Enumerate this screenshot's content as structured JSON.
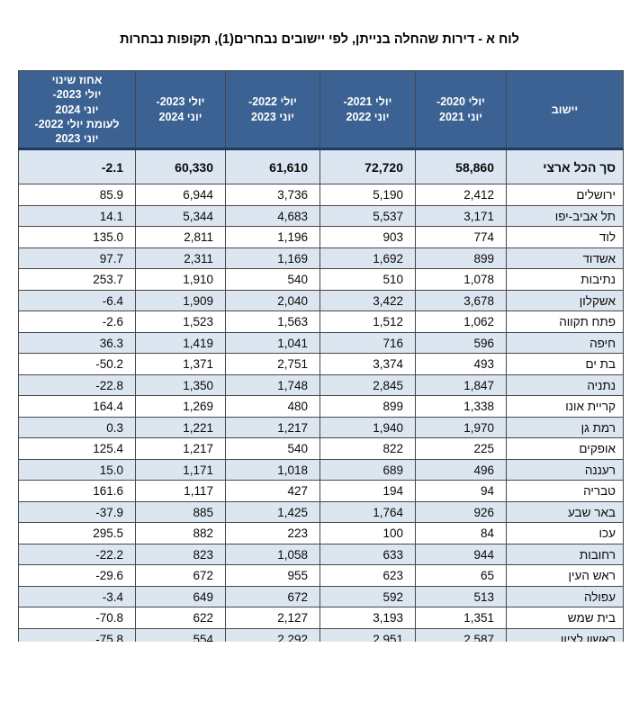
{
  "page": {
    "title": "לוח א - דירות שהחלה בנייתן, לפי יישובים נבחרים(1), תקופות נבחרות"
  },
  "table": {
    "colors": {
      "header_bg": "#3b6292",
      "header_bottom_border": "#1f3864",
      "alt_row_bg": "#dce6f1",
      "grid_line": "#474747",
      "header_text": "#ffffff",
      "body_text": "#0a0a0a"
    },
    "columns": [
      {
        "key": "locality",
        "label_lines": [
          "יישוב"
        ]
      },
      {
        "key": "jul2020-jun2021",
        "label_lines": [
          "יולי 2020-",
          "יוני 2021"
        ]
      },
      {
        "key": "jul2021-jun2022",
        "label_lines": [
          "יולי 2021-",
          "יוני 2022"
        ]
      },
      {
        "key": "jul2022-jun2023",
        "label_lines": [
          "יולי 2022-",
          "יוני 2023"
        ]
      },
      {
        "key": "jul2023-jun2024",
        "label_lines": [
          "יולי 2023-",
          "יוני 2024"
        ]
      },
      {
        "key": "pct-change",
        "label_lines": [
          "אחוז שינוי",
          "יולי 2023-",
          "יוני 2024",
          "לעומת יולי 2022-",
          "יוני 2023"
        ]
      }
    ],
    "total_row": {
      "locality": "סך הכל ארצי",
      "values": [
        "58,860",
        "72,720",
        "61,610",
        "60,330"
      ],
      "pct": "-2.1"
    },
    "rows": [
      {
        "locality": "ירושלים",
        "values": [
          "2,412",
          "5,190",
          "3,736",
          "6,944"
        ],
        "pct": "85.9"
      },
      {
        "locality": "תל אביב-יפו",
        "values": [
          "3,171",
          "5,537",
          "4,683",
          "5,344"
        ],
        "pct": "14.1"
      },
      {
        "locality": "לוד",
        "values": [
          "774",
          "903",
          "1,196",
          "2,811"
        ],
        "pct": "135.0"
      },
      {
        "locality": "אשדוד",
        "values": [
          "899",
          "1,692",
          "1,169",
          "2,311"
        ],
        "pct": "97.7"
      },
      {
        "locality": "נתיבות",
        "values": [
          "1,078",
          "510",
          "540",
          "1,910"
        ],
        "pct": "253.7"
      },
      {
        "locality": "אשקלון",
        "values": [
          "3,678",
          "3,422",
          "2,040",
          "1,909"
        ],
        "pct": "-6.4"
      },
      {
        "locality": "פתח תקווה",
        "values": [
          "1,062",
          "1,512",
          "1,563",
          "1,523"
        ],
        "pct": "-2.6"
      },
      {
        "locality": "חיפה",
        "values": [
          "596",
          "716",
          "1,041",
          "1,419"
        ],
        "pct": "36.3"
      },
      {
        "locality": "בת ים",
        "values": [
          "493",
          "3,374",
          "2,751",
          "1,371"
        ],
        "pct": "-50.2"
      },
      {
        "locality": "נתניה",
        "values": [
          "1,847",
          "2,845",
          "1,748",
          "1,350"
        ],
        "pct": "-22.8"
      },
      {
        "locality": "קריית אונו",
        "values": [
          "1,338",
          "899",
          "480",
          "1,269"
        ],
        "pct": "164.4"
      },
      {
        "locality": "רמת גן",
        "values": [
          "1,970",
          "1,940",
          "1,217",
          "1,221"
        ],
        "pct": "0.3"
      },
      {
        "locality": "אופקים",
        "values": [
          "225",
          "822",
          "540",
          "1,217"
        ],
        "pct": "125.4"
      },
      {
        "locality": "רעננה",
        "values": [
          "496",
          "689",
          "1,018",
          "1,171"
        ],
        "pct": "15.0"
      },
      {
        "locality": "טבריה",
        "values": [
          "94",
          "194",
          "427",
          "1,117"
        ],
        "pct": "161.6"
      },
      {
        "locality": "באר שבע",
        "values": [
          "926",
          "1,764",
          "1,425",
          "885"
        ],
        "pct": "-37.9"
      },
      {
        "locality": "עכו",
        "values": [
          "84",
          "100",
          "223",
          "882"
        ],
        "pct": "295.5"
      },
      {
        "locality": "רחובות",
        "values": [
          "944",
          "633",
          "1,058",
          "823"
        ],
        "pct": "-22.2"
      },
      {
        "locality": "ראש העין",
        "values": [
          "65",
          "623",
          "955",
          "672"
        ],
        "pct": "-29.6"
      },
      {
        "locality": "עפולה",
        "values": [
          "513",
          "592",
          "672",
          "649"
        ],
        "pct": "-3.4"
      },
      {
        "locality": "בית שמש",
        "values": [
          "1,351",
          "3,193",
          "2,127",
          "622"
        ],
        "pct": "-70.8"
      },
      {
        "locality": "ראשון לציון",
        "values": [
          "2,587",
          "2,951",
          "2,292",
          "554"
        ],
        "pct": "-75.8"
      }
    ]
  }
}
